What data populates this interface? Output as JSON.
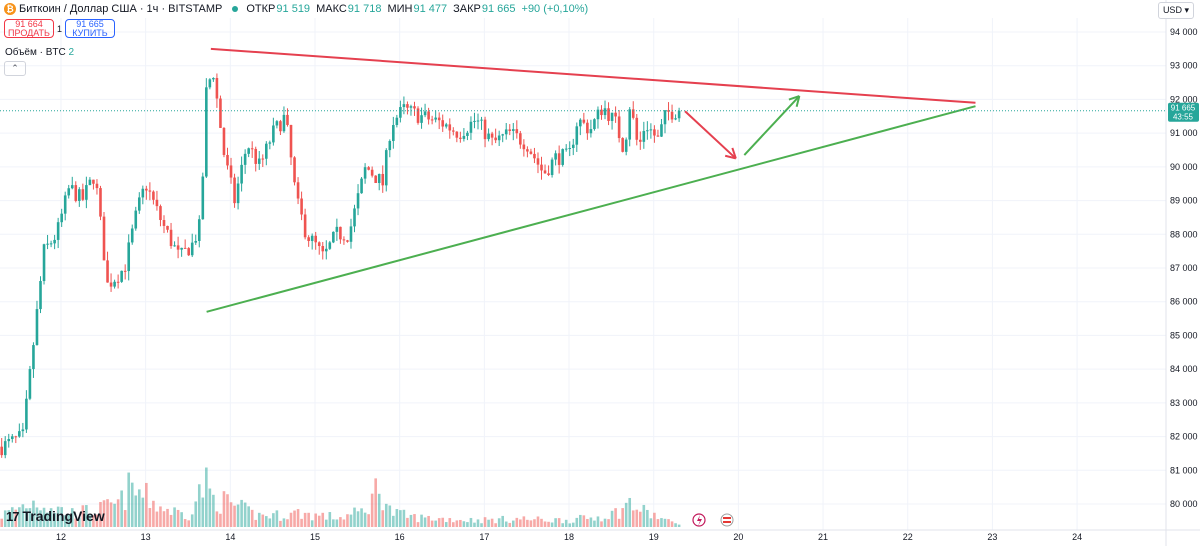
{
  "header": {
    "symbol_title": "Биткоин / Доллар США · 1ч · BITSTAMP",
    "open_label": "ОТКР",
    "open_value": "91 519",
    "high_label": "МАКС",
    "high_value": "91 718",
    "low_label": "МИН",
    "low_value": "91 477",
    "close_label": "ЗАКР",
    "close_value": "91 665",
    "change": "+90 (+0,10%)"
  },
  "trade": {
    "sell_price": "91 664",
    "sell_label": "ПРОДАТЬ",
    "spread": "1",
    "buy_price": "91 665",
    "buy_label": "КУПИТЬ"
  },
  "volume_legend": {
    "label": "Объём · BTC",
    "value": "2"
  },
  "currency": "USD",
  "branding": "TradingView",
  "price_tag": {
    "price": "91 665",
    "countdown": "43:55"
  },
  "colors": {
    "up": "#26a69a",
    "down": "#ef5350",
    "resistance": "#e5404f",
    "support": "#4caf50",
    "grid": "#f0f3fa"
  },
  "chart_data": {
    "type": "candlestick",
    "title": "Биткоин / Доллар США · 1ч · BITSTAMP",
    "y_ticks": [
      80000,
      81000,
      82000,
      83000,
      84000,
      85000,
      86000,
      87000,
      88000,
      89000,
      90000,
      91000,
      92000,
      93000,
      94000
    ],
    "y_tick_labels": [
      "80 000",
      "81 000",
      "82 000",
      "83 000",
      "84 000",
      "85 000",
      "86 000",
      "87 000",
      "88 000",
      "89 000",
      "90 000",
      "91 000",
      "92 000",
      "93 000",
      "94 000"
    ],
    "ylim": [
      79300,
      94300
    ],
    "x_ticks": [
      12,
      13,
      14,
      15,
      16,
      17,
      18,
      19,
      20,
      21,
      22,
      23,
      24
    ],
    "x_tick_labels": [
      "12",
      "13",
      "14",
      "15",
      "16",
      "17",
      "18",
      "19",
      "20",
      "21",
      "22",
      "23",
      "24"
    ],
    "xlim": [
      11.28,
      25.05
    ],
    "last_price": 91665,
    "price_path": [
      [
        11.3,
        81700
      ],
      [
        11.55,
        82000
      ],
      [
        11.8,
        87500
      ],
      [
        11.95,
        88000
      ],
      [
        12.1,
        89400
      ],
      [
        12.25,
        89000
      ],
      [
        12.4,
        89800
      ],
      [
        12.55,
        86500
      ],
      [
        12.75,
        87000
      ],
      [
        12.9,
        88700
      ],
      [
        13.0,
        89500
      ],
      [
        13.2,
        88300
      ],
      [
        13.4,
        87300
      ],
      [
        13.55,
        87700
      ],
      [
        13.65,
        88300
      ],
      [
        13.72,
        92400
      ],
      [
        13.8,
        92800
      ],
      [
        13.93,
        90300
      ],
      [
        14.05,
        89000
      ],
      [
        14.2,
        90700
      ],
      [
        14.35,
        90000
      ],
      [
        14.5,
        91000
      ],
      [
        14.65,
        91500
      ],
      [
        14.78,
        89000
      ],
      [
        14.9,
        88000
      ],
      [
        15.0,
        87700
      ],
      [
        15.1,
        87300
      ],
      [
        15.25,
        88000
      ],
      [
        15.4,
        88000
      ],
      [
        15.6,
        90000
      ],
      [
        15.8,
        89500
      ],
      [
        15.9,
        91300
      ],
      [
        16.05,
        91700
      ],
      [
        16.25,
        91500
      ],
      [
        16.5,
        91300
      ],
      [
        16.7,
        91000
      ],
      [
        16.9,
        91400
      ],
      [
        17.1,
        90700
      ],
      [
        17.3,
        91000
      ],
      [
        17.5,
        90700
      ],
      [
        17.7,
        89800
      ],
      [
        17.85,
        90300
      ],
      [
        18.0,
        90300
      ],
      [
        18.1,
        91400
      ],
      [
        18.25,
        91100
      ],
      [
        18.4,
        91800
      ],
      [
        18.55,
        91300
      ],
      [
        18.65,
        90500
      ],
      [
        18.72,
        91900
      ],
      [
        18.82,
        90500
      ],
      [
        18.9,
        91300
      ],
      [
        19.05,
        90800
      ],
      [
        19.15,
        91600
      ],
      [
        19.3,
        91665
      ]
    ],
    "volume_ylim": [
      0,
      100
    ],
    "volume_path": [
      [
        11.3,
        10
      ],
      [
        11.55,
        18
      ],
      [
        11.7,
        22
      ],
      [
        12.1,
        12
      ],
      [
        12.4,
        14
      ],
      [
        12.7,
        20
      ],
      [
        12.8,
        32
      ],
      [
        12.95,
        28
      ],
      [
        13.2,
        16
      ],
      [
        13.5,
        10
      ],
      [
        13.7,
        38
      ],
      [
        13.8,
        24
      ],
      [
        14.0,
        20
      ],
      [
        14.3,
        10
      ],
      [
        14.6,
        10
      ],
      [
        14.8,
        12
      ],
      [
        15.0,
        10
      ],
      [
        15.3,
        8
      ],
      [
        15.6,
        14
      ],
      [
        15.75,
        36
      ],
      [
        15.9,
        12
      ],
      [
        16.2,
        8
      ],
      [
        16.5,
        7
      ],
      [
        16.8,
        6
      ],
      [
        17.1,
        6
      ],
      [
        17.4,
        7
      ],
      [
        17.7,
        6
      ],
      [
        18.0,
        6
      ],
      [
        18.3,
        8
      ],
      [
        18.55,
        12
      ],
      [
        18.72,
        20
      ],
      [
        18.85,
        14
      ],
      [
        19.0,
        10
      ],
      [
        19.2,
        4
      ]
    ],
    "resistance_line": [
      [
        13.77,
        93500
      ],
      [
        22.8,
        91900
      ]
    ],
    "support_line": [
      [
        13.72,
        85700
      ],
      [
        22.8,
        91800
      ]
    ],
    "forecast_down_arrow": [
      [
        19.37,
        91650
      ],
      [
        19.97,
        90250
      ]
    ],
    "forecast_up_arrow": [
      [
        20.07,
        90350
      ],
      [
        20.72,
        92100
      ]
    ]
  }
}
